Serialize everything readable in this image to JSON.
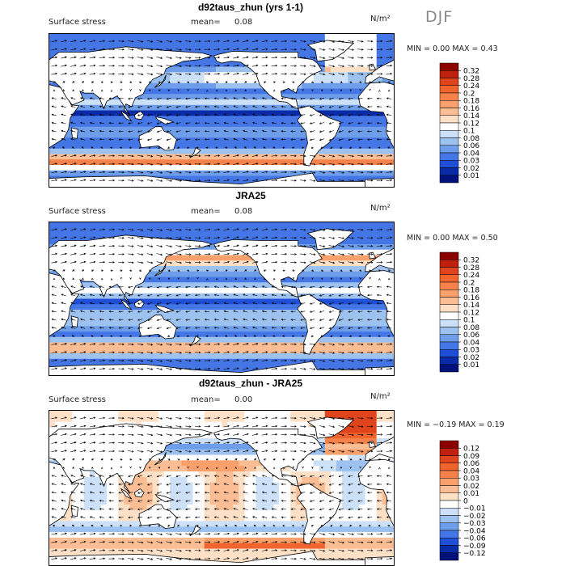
{
  "season_label": "DJF",
  "chart_data": [
    {
      "type": "heatmap",
      "title": "d92taus_zhun (yrs 1-1)",
      "field": "Surface stress",
      "mean_label": "mean=",
      "mean": "0.08",
      "units_label": "N/m²",
      "min_label": "MIN =",
      "min": "0.00",
      "max_label": "MAX =",
      "max": "0.43",
      "colorbar_levels": [
        "0.32",
        "0.28",
        "0.24",
        "0.2",
        "0.18",
        "0.16",
        "0.14",
        "0.12",
        "0.1",
        "0.08",
        "0.06",
        "0.04",
        "0.03",
        "0.02",
        "0.01"
      ],
      "colorbar_colors": [
        "#8b0000",
        "#c0200e",
        "#e0441c",
        "#f0642e",
        "#f5824a",
        "#f9a06c",
        "#fbbd94",
        "#fde0c6",
        "#ffffff",
        "#cce0f8",
        "#9ec2f0",
        "#6e9eea",
        "#4476e6",
        "#1f4fd6",
        "#0a2ba8",
        "#03127a"
      ],
      "pattern": "model"
    },
    {
      "type": "heatmap",
      "title": "JRA25",
      "field": "Surface stress",
      "mean_label": "mean=",
      "mean": "0.08",
      "units_label": "N/m²",
      "min_label": "MIN =",
      "min": "0.00",
      "max_label": "MAX =",
      "max": "0.50",
      "colorbar_levels": [
        "0.32",
        "0.28",
        "0.24",
        "0.2",
        "0.18",
        "0.16",
        "0.14",
        "0.12",
        "0.1",
        "0.08",
        "0.06",
        "0.04",
        "0.03",
        "0.02",
        "0.01"
      ],
      "colorbar_colors": [
        "#8b0000",
        "#c0200e",
        "#e0441c",
        "#f0642e",
        "#f5824a",
        "#f9a06c",
        "#fbbd94",
        "#fde0c6",
        "#ffffff",
        "#cce0f8",
        "#9ec2f0",
        "#6e9eea",
        "#4476e6",
        "#1f4fd6",
        "#0a2ba8",
        "#03127a"
      ],
      "pattern": "obs"
    },
    {
      "type": "heatmap",
      "title": "d92taus_zhun - JRA25",
      "field": "Surface stress",
      "mean_label": "mean=",
      "mean": "0.00",
      "units_label": "N/m²",
      "min_label": "MIN =",
      "min": "−0.19",
      "max_label": "MAX =",
      "max": "0.19",
      "colorbar_levels": [
        "0.12",
        "0.09",
        "0.06",
        "0.04",
        "0.03",
        "0.02",
        "0.01",
        "0",
        "−0.01",
        "−0.02",
        "−0.03",
        "−0.04",
        "−0.06",
        "−0.09",
        "−0.12"
      ],
      "colorbar_colors": [
        "#8b0000",
        "#c0200e",
        "#e0441c",
        "#f0642e",
        "#f5824a",
        "#f9a06c",
        "#fbbd94",
        "#fde0c6",
        "#ffffff",
        "#cce0f8",
        "#9ec2f0",
        "#6e9eea",
        "#4476e6",
        "#1f4fd6",
        "#0a2ba8",
        "#03127a"
      ],
      "pattern": "diff"
    }
  ]
}
